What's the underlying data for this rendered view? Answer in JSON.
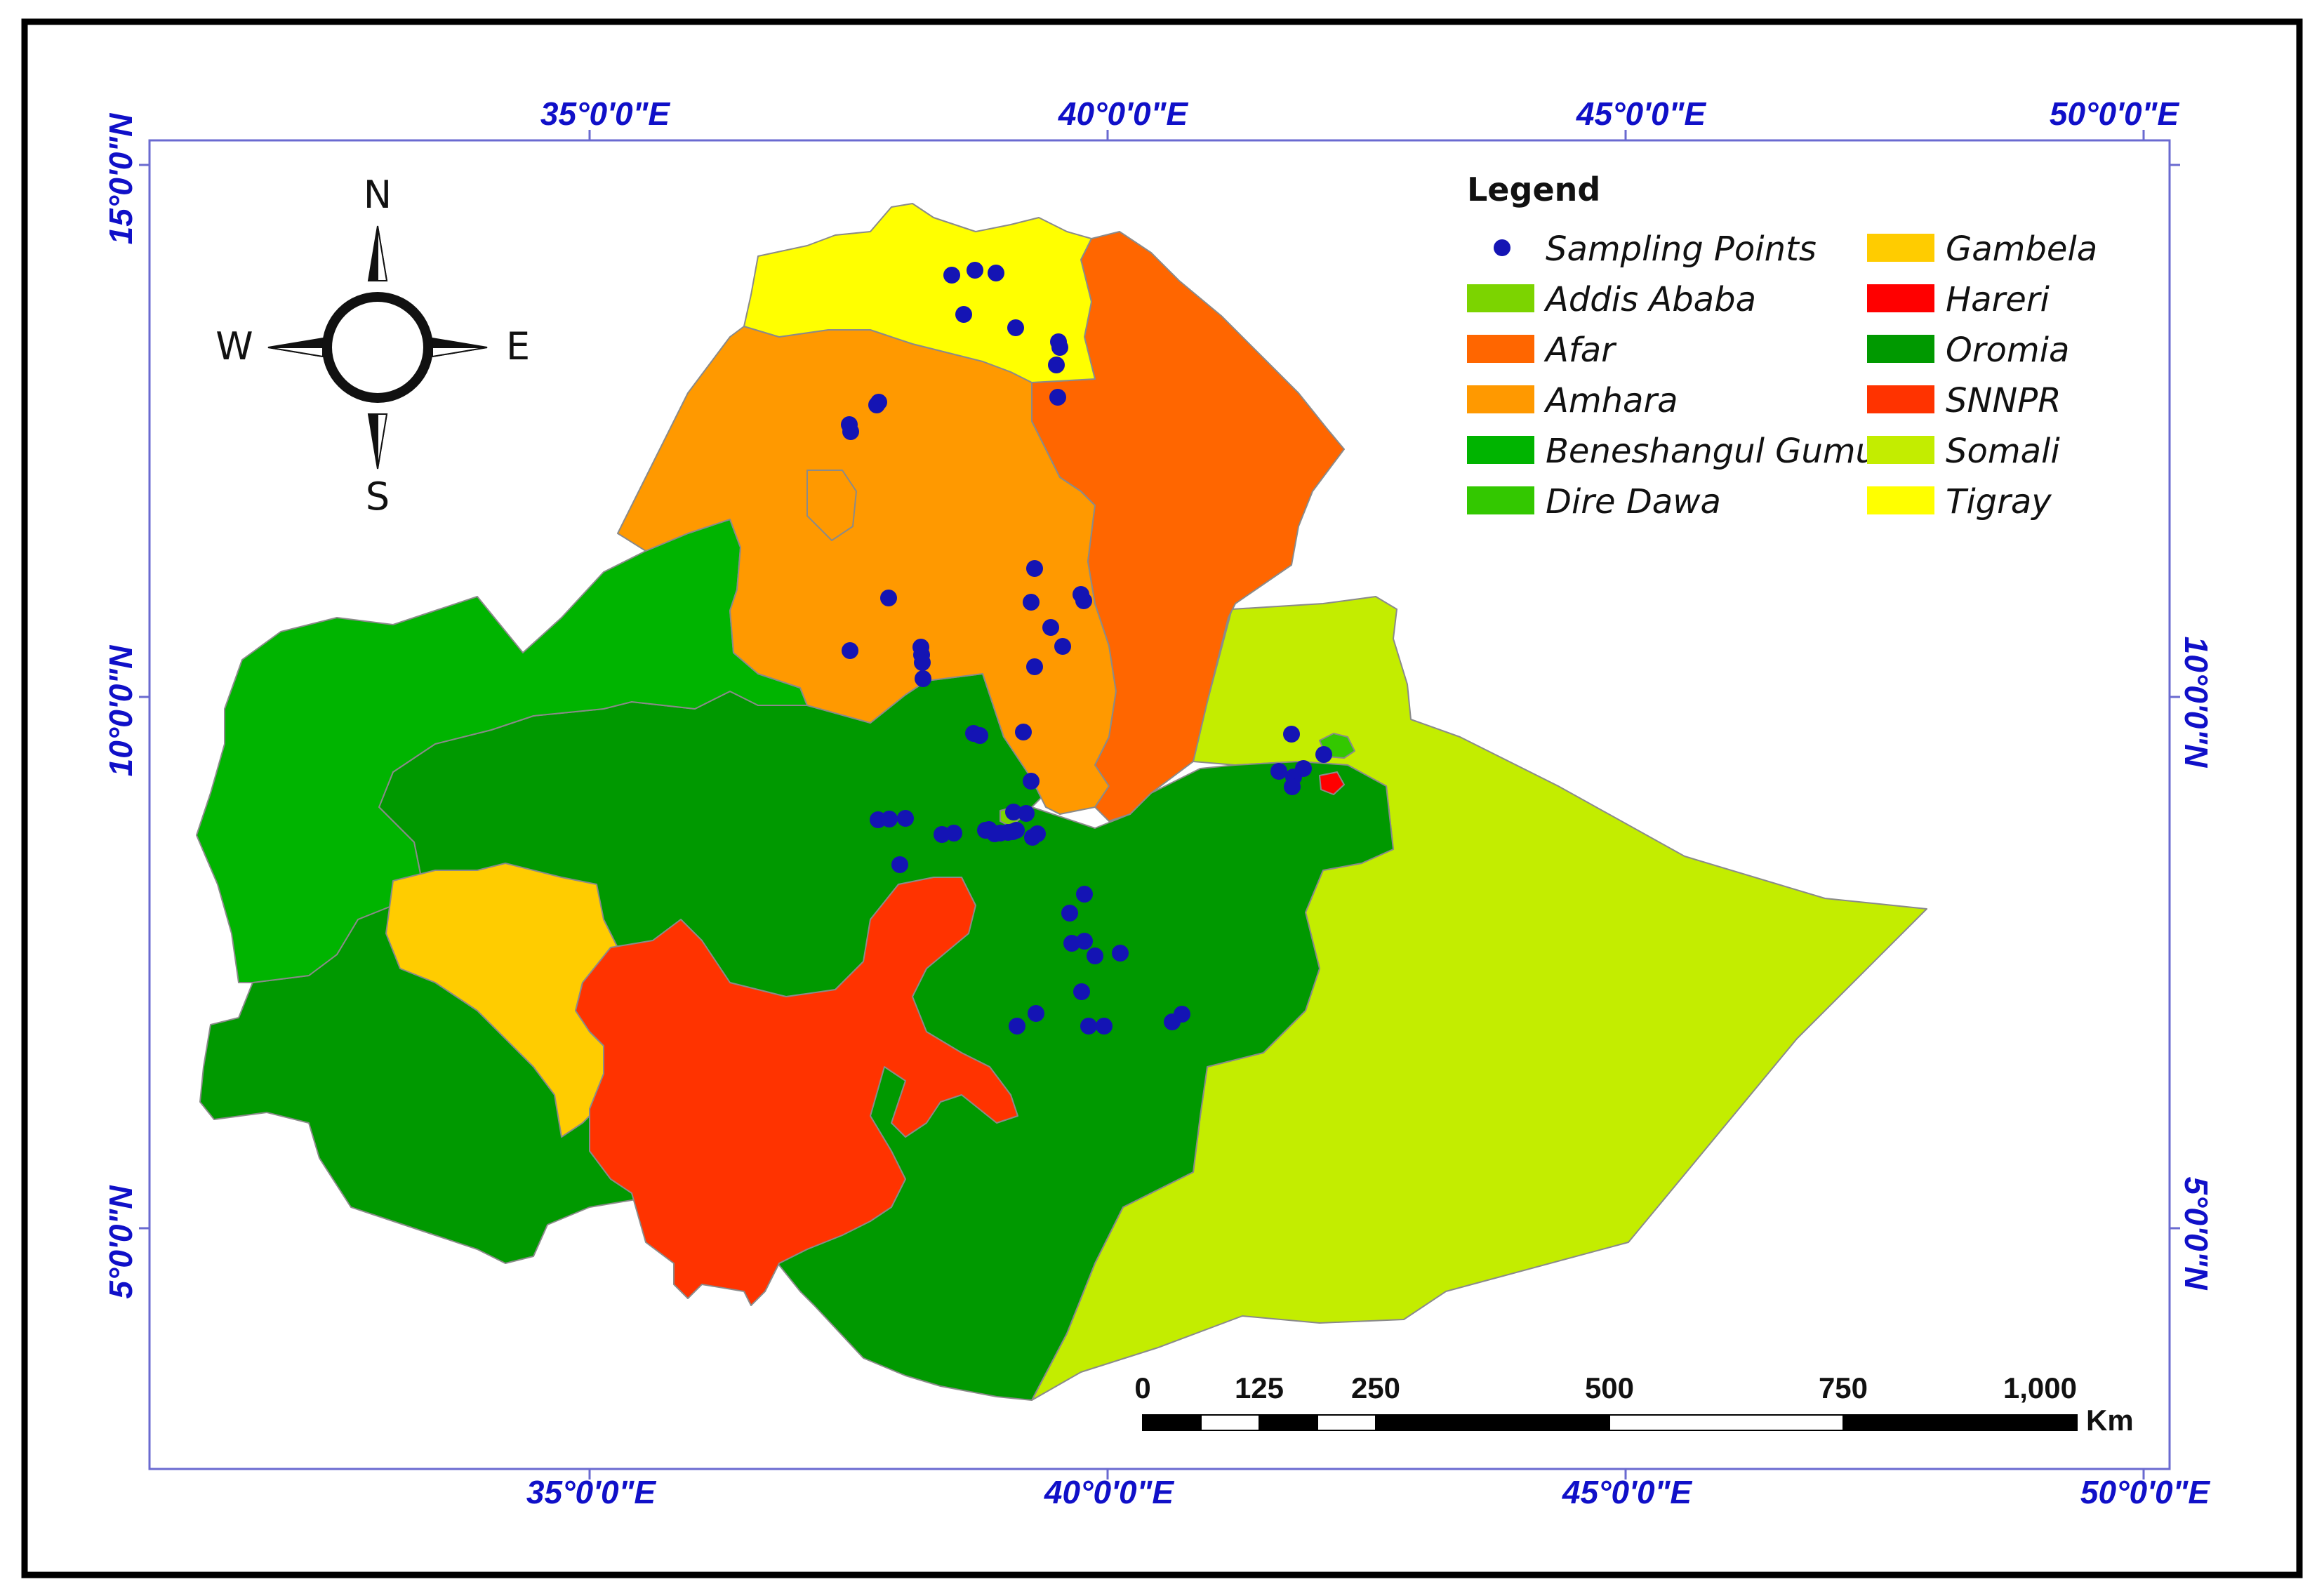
{
  "map": {
    "graticule": {
      "longitudes": [
        "35°0'0\"E",
        "40°0'0\"E",
        "45°0'0\"E",
        "50°0'0\"E"
      ],
      "latitudes": [
        "15°0'0\"N",
        "10°0'0\"N",
        "5°0'0\"N"
      ]
    },
    "compass": {
      "north": "N",
      "south": "S",
      "east": "E",
      "west": "W"
    },
    "legend": {
      "title": "Legend",
      "sampling_label": "Sampling Points",
      "sampling_color": "#1414b4",
      "regions": [
        {
          "name": "Addis Ababa",
          "color": "#7cd400"
        },
        {
          "name": "Afar",
          "color": "#ff6600"
        },
        {
          "name": "Amhara",
          "color": "#ff9900"
        },
        {
          "name": "Beneshangul Gumu",
          "color": "#00b400"
        },
        {
          "name": "Dire Dawa",
          "color": "#33c800"
        },
        {
          "name": "Gambela",
          "color": "#ffcc00"
        },
        {
          "name": "Hareri",
          "color": "#ff0000"
        },
        {
          "name": "Oromia",
          "color": "#009900"
        },
        {
          "name": "SNNPR",
          "color": "#ff3300"
        },
        {
          "name": "Somali",
          "color": "#c3ed00"
        },
        {
          "name": "Tigray",
          "color": "#ffff00"
        }
      ]
    },
    "scale_bar": {
      "labels": [
        "0",
        "125",
        "250",
        "500",
        "750",
        "1,000"
      ],
      "unit": "Km"
    }
  }
}
